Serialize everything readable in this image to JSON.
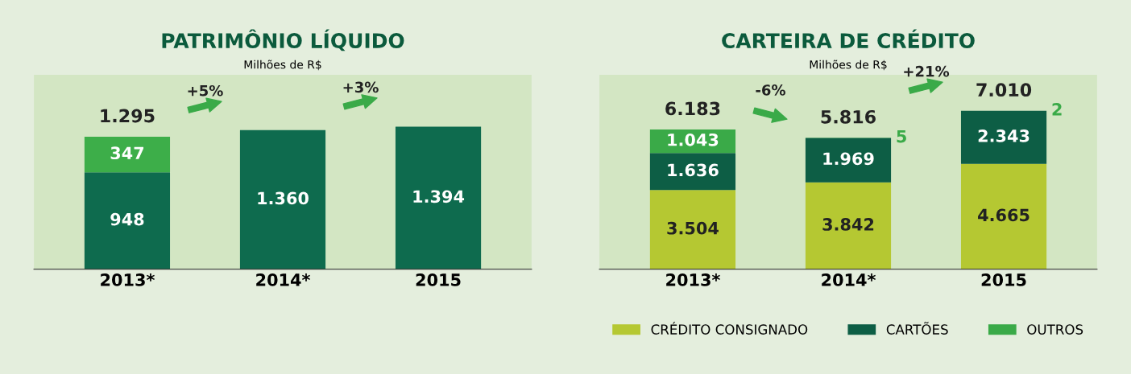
{
  "chart_data": [
    {
      "type": "bar",
      "title": "PATRIMÔNIO LÍQUIDO",
      "subtitle": "Milhões de R$",
      "categories": [
        "2013*",
        "2014*",
        "2015"
      ],
      "stacked": true,
      "series": [
        {
          "color": "#0e6b4e",
          "values": [
            948,
            1360,
            1394
          ],
          "value_labels": [
            "948",
            "1.360",
            "1.394"
          ]
        },
        {
          "color": "#3dae49",
          "values": [
            347,
            null,
            null
          ],
          "value_labels": [
            "347",
            null,
            null
          ]
        }
      ],
      "totals": [
        "1.295",
        null,
        null
      ],
      "annotations": [
        "+5%",
        "+3%"
      ],
      "ylim": [
        0,
        1900
      ],
      "tick_labels": "x",
      "legend": false
    },
    {
      "type": "bar",
      "title": "CARTEIRA DE CRÉDITO",
      "subtitle": "Milhões de R$",
      "categories": [
        "2013*",
        "2014*",
        "2015"
      ],
      "stacked": true,
      "series": [
        {
          "name": "CRÉDITO CONSIGNADO",
          "color": "#b5c832",
          "values": [
            3504,
            3842,
            4665
          ],
          "value_labels": [
            "3.504",
            "3.842",
            "4.665"
          ]
        },
        {
          "name": "CARTÕES",
          "color": "#0d5e45",
          "values": [
            1636,
            1969,
            2343
          ],
          "value_labels": [
            "1.636",
            "1.969",
            "2.343"
          ]
        },
        {
          "name": "OUTROS",
          "color": "#3aaa48",
          "values": [
            1043,
            5,
            2
          ],
          "value_labels": [
            "1.043",
            "5",
            "2"
          ]
        }
      ],
      "totals": [
        "6.183",
        "5.816",
        "7.010"
      ],
      "annotations": [
        "-6%",
        "+21%"
      ],
      "ylim": [
        0,
        8600
      ],
      "tick_labels": "x",
      "legend": "bottom"
    }
  ]
}
